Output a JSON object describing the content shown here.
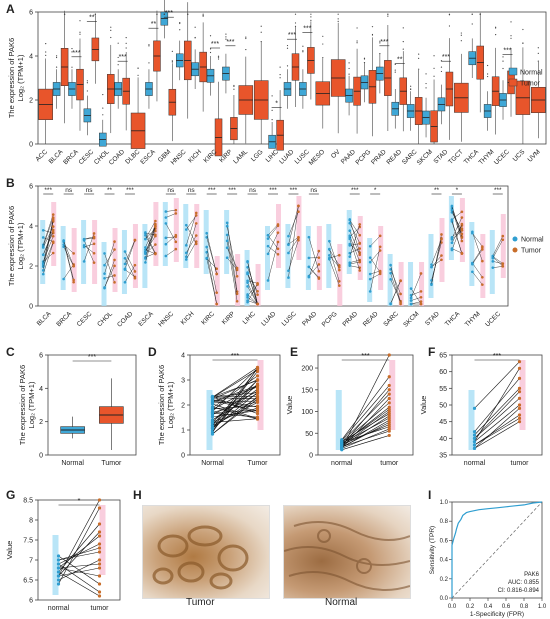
{
  "colors": {
    "normal": "#3fa7d6",
    "tumor": "#e8552b",
    "normal_point": "#2f9ed0",
    "tumor_point": "#c86d2a",
    "line": "#111111",
    "diag": "#666666",
    "roc": "#2f9ed0"
  },
  "panels": {
    "A": "A",
    "B": "B",
    "C": "C",
    "D": "D",
    "E": "E",
    "F": "F",
    "G": "G",
    "H": "H",
    "I": "I"
  },
  "chart_data": [
    {
      "id": "A",
      "type": "box",
      "ylabel": "The expression of PAK6",
      "ylabel2": "Log₂ (TPM+1)",
      "ylim": [
        0,
        6
      ],
      "yticks": [
        0,
        2,
        4,
        6
      ],
      "legend": [
        "Normal",
        "Tumor"
      ],
      "categories": [
        "ACC",
        "BLCA",
        "BRCA",
        "CESC",
        "CHOL",
        "COAD",
        "DLBC",
        "ESCA",
        "GBM",
        "HNSC",
        "KICH",
        "KIRC",
        "KIRP",
        "LAML",
        "LGG",
        "LIHC",
        "LUAD",
        "LUSC",
        "MESO",
        "OV",
        "PAAD",
        "PCPG",
        "PRAD",
        "READ",
        "SARC",
        "SKCM",
        "STAD",
        "TGCT",
        "THCA",
        "THYM",
        "UCEC",
        "UCS",
        "UVM"
      ],
      "normal": [
        null,
        2.5,
        2.5,
        1.3,
        0.2,
        2.5,
        null,
        2.5,
        5.7,
        3.8,
        3.4,
        3.1,
        3.2,
        null,
        null,
        0.1,
        2.5,
        2.5,
        null,
        null,
        2.2,
        2.8,
        3.2,
        1.6,
        1.5,
        1.2,
        1.8,
        null,
        3.9,
        1.5,
        2.0,
        null,
        null
      ],
      "tumor": [
        1.8,
        3.5,
        2.7,
        4.3,
        2.5,
        2.4,
        0.6,
        4.0,
        1.9,
        3.8,
        3.5,
        0.3,
        0.7,
        2.0,
        2.0,
        0.4,
        3.5,
        3.8,
        2.3,
        3.0,
        2.4,
        2.6,
        3.0,
        2.4,
        1.5,
        0.8,
        2.5,
        2.1,
        3.7,
        2.4,
        2.8,
        2.1,
        2.0
      ],
      "sig": [
        "",
        "",
        "***",
        "**",
        "",
        "***",
        "",
        "**",
        "***",
        "",
        "",
        "***",
        "***",
        "",
        "",
        "*",
        "***",
        "***",
        "",
        "",
        "",
        "",
        "***",
        "**",
        "",
        "",
        "***",
        "",
        "",
        "",
        "***",
        "",
        ""
      ]
    },
    {
      "id": "B",
      "type": "paired",
      "ylabel": "The expression of PAK6",
      "ylabel2": "Log₂ (TPM+1)",
      "ylim": [
        0,
        6
      ],
      "yticks": [
        0,
        2,
        4,
        6
      ],
      "legend": [
        "Normal",
        "Tumor"
      ],
      "categories": [
        "BLCA",
        "BRCA",
        "CESC",
        "CHOL",
        "COAD",
        "ESCA",
        "HNSC",
        "KICH",
        "KIRC",
        "KIRP",
        "LIHC",
        "LUAD",
        "LUSC",
        "PAAD",
        "PCPG",
        "PRAD",
        "READ",
        "SARC",
        "SKCM",
        "STAD",
        "THCA",
        "THYM",
        "UCEC"
      ],
      "normal": [
        2.7,
        2.4,
        2.7,
        1.6,
        2.2,
        2.5,
        3.6,
        3.5,
        3.2,
        3.2,
        1.2,
        2.4,
        2.5,
        2.4,
        2.5,
        3.2,
        1.8,
        1.0,
        0.6,
        2.0,
        3.9,
        2.6,
        2.2
      ],
      "tumor": [
        3.6,
        2.3,
        2.7,
        2.3,
        2.5,
        3.6,
        3.8,
        3.5,
        0.9,
        1.0,
        0.5,
        3.5,
        3.9,
        2.4,
        1.5,
        2.9,
        2.4,
        0.6,
        0.6,
        2.8,
        3.8,
        2.0,
        3.0
      ],
      "sig": [
        "***",
        "ns",
        "ns",
        "**",
        "***",
        "",
        "ns",
        "ns",
        "***",
        "***",
        "ns",
        "***",
        "***",
        "ns",
        "",
        "***",
        "*",
        "",
        "",
        "**",
        "*",
        "",
        "***"
      ]
    },
    {
      "id": "C",
      "type": "box",
      "ylabel": "The expression of PAK6",
      "ylabel2": "Log₂ (TPM+1)",
      "categories": [
        "Normal",
        "Tumor"
      ],
      "ylim": [
        0,
        6
      ],
      "yticks": [
        0,
        2,
        4,
        6
      ],
      "q1": [
        1.3,
        1.9
      ],
      "median": [
        1.5,
        2.4
      ],
      "q3": [
        1.7,
        2.9
      ],
      "whisk_lo": [
        1.0,
        0.3
      ],
      "whisk_hi": [
        2.3,
        4.6
      ],
      "sig": "***"
    },
    {
      "id": "D",
      "type": "paired",
      "ylabel": "The expression of PAK6",
      "ylabel2": "Log₂ (TPM+1)",
      "categories": [
        "Normal",
        "Tumor"
      ],
      "ylim": [
        0,
        4
      ],
      "yticks": [
        0,
        1,
        2,
        3,
        4
      ],
      "normal_mean": 1.6,
      "tumor_mean": 2.5,
      "sig": "***"
    },
    {
      "id": "E",
      "type": "paired",
      "ylabel": "Value",
      "categories": [
        "normal",
        "tumor"
      ],
      "ylim": [
        0,
        230
      ],
      "yticks": [
        0,
        50,
        100,
        150,
        200
      ],
      "normal_values": [
        12,
        15,
        18,
        20,
        22,
        25,
        28,
        30,
        33,
        35,
        14,
        19,
        24,
        27,
        31,
        16,
        21,
        26,
        29,
        17
      ],
      "tumor_values": [
        45,
        60,
        75,
        90,
        100,
        110,
        120,
        140,
        160,
        180,
        230,
        55,
        70,
        85,
        95,
        130,
        150,
        105,
        65,
        80
      ],
      "sig": "***"
    },
    {
      "id": "F",
      "type": "paired",
      "ylabel": "Value",
      "categories": [
        "normal",
        "tumor"
      ],
      "ylim": [
        35,
        65
      ],
      "yticks": [
        35,
        40,
        45,
        50,
        55,
        60,
        65
      ],
      "normal_values": [
        37,
        38,
        39,
        40,
        41,
        42,
        39,
        49,
        38,
        40,
        37
      ],
      "tumor_values": [
        45,
        47,
        50,
        52,
        55,
        58,
        61,
        63,
        46,
        54,
        49
      ],
      "sig": "***"
    },
    {
      "id": "G",
      "type": "paired",
      "ylabel": "Value",
      "categories": [
        "normal",
        "tumor"
      ],
      "ylim": [
        6.0,
        8.5
      ],
      "yticks": [
        6.0,
        6.5,
        7.0,
        7.5,
        8.0,
        8.5
      ],
      "normal_values": [
        6.6,
        6.7,
        6.8,
        6.9,
        7.0,
        6.5,
        6.6,
        6.8,
        7.1,
        6.9,
        6.7,
        6.6,
        6.4,
        6.8,
        7.0
      ],
      "tumor_values": [
        8.5,
        7.9,
        7.6,
        7.4,
        7.2,
        7.0,
        6.8,
        6.6,
        6.4,
        6.2,
        6.1,
        7.7,
        8.3,
        6.9,
        7.3
      ],
      "sig": "*"
    },
    {
      "id": "I",
      "type": "line",
      "xlabel": "1-Specificity (FPR)",
      "ylabel": "Sensitivity (TPR)",
      "xlim": [
        0,
        1
      ],
      "ylim": [
        0,
        1
      ],
      "xticks": [
        0.0,
        0.2,
        0.4,
        0.6,
        0.8,
        1.0
      ],
      "yticks": [
        0.0,
        0.2,
        0.4,
        0.6,
        0.8,
        1.0
      ],
      "x": [
        0,
        0.0,
        0.02,
        0.04,
        0.05,
        0.07,
        0.1,
        0.12,
        0.16,
        0.2,
        0.3,
        0.4,
        0.5,
        0.6,
        0.7,
        0.8,
        0.9,
        1.0
      ],
      "y": [
        0,
        0.55,
        0.62,
        0.68,
        0.72,
        0.78,
        0.82,
        0.86,
        0.89,
        0.9,
        0.92,
        0.93,
        0.94,
        0.95,
        0.96,
        0.97,
        0.99,
        1.0
      ],
      "legend_name": "PAK6",
      "auc": "AUC: 0.855",
      "ci": "CI: 0.816-0.894"
    }
  ],
  "he": {
    "tumor_label": "Tumor",
    "normal_label": "Normal"
  }
}
